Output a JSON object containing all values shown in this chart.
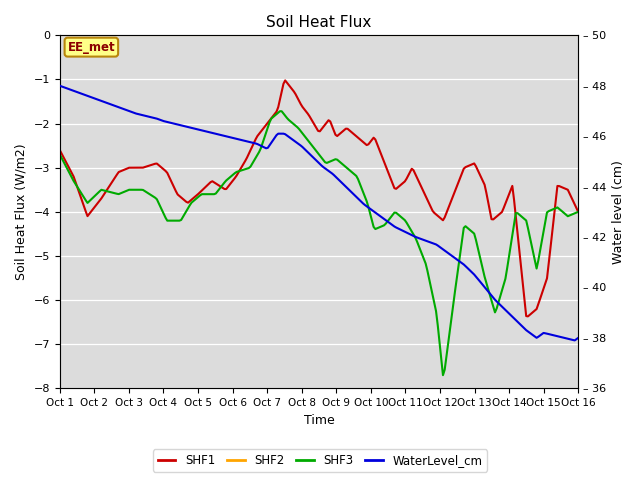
{
  "title": "Soil Heat Flux",
  "xlabel": "Time",
  "ylabel_left": "Soil Heat Flux (W/m2)",
  "ylabel_right": "Water level (cm)",
  "xlim": [
    0,
    15
  ],
  "ylim_left": [
    -8.0,
    0.0
  ],
  "ylim_right": [
    36,
    50
  ],
  "xtick_labels": [
    "Oct 1",
    "Oct 2",
    "Oct 3",
    "Oct 4",
    "Oct 5",
    "Oct 6",
    "Oct 7",
    "Oct 8",
    "Oct 9",
    "Oct 10",
    "Oct 11",
    "Oct 12",
    "Oct 13",
    "Oct 14",
    "Oct 15",
    "Oct 16"
  ],
  "yticks_left": [
    0.0,
    -1.0,
    -2.0,
    -3.0,
    -4.0,
    -5.0,
    -6.0,
    -7.0,
    -8.0
  ],
  "yticks_right": [
    50,
    48,
    46,
    44,
    42,
    40,
    38,
    36
  ],
  "background_color": "#dcdcdc",
  "SHF1_color": "#CC0000",
  "SHF2_color": "#FFA500",
  "SHF3_color": "#00AA00",
  "WaterLevel_color": "#0000DD",
  "shf1_kp_x": [
    0,
    0.4,
    0.8,
    1.2,
    1.7,
    2.0,
    2.4,
    2.8,
    3.1,
    3.4,
    3.7,
    4.0,
    4.4,
    4.8,
    5.1,
    5.4,
    5.7,
    6.0,
    6.3,
    6.5,
    6.8,
    7.0,
    7.2,
    7.5,
    7.8,
    8.0,
    8.3,
    8.6,
    8.9,
    9.1,
    9.4,
    9.7,
    10.0,
    10.2,
    10.5,
    10.8,
    11.1,
    11.4,
    11.7,
    12.0,
    12.3,
    12.5,
    12.8,
    13.1,
    13.5,
    13.8,
    14.1,
    14.4,
    14.7,
    15.0
  ],
  "shf1_kp_y": [
    -2.6,
    -3.2,
    -4.1,
    -3.7,
    -3.1,
    -3.0,
    -3.0,
    -2.9,
    -3.1,
    -3.6,
    -3.8,
    -3.6,
    -3.3,
    -3.5,
    -3.2,
    -2.8,
    -2.3,
    -2.0,
    -1.7,
    -1.0,
    -1.3,
    -1.6,
    -1.8,
    -2.2,
    -1.9,
    -2.3,
    -2.1,
    -2.3,
    -2.5,
    -2.3,
    -2.9,
    -3.5,
    -3.3,
    -3.0,
    -3.5,
    -4.0,
    -4.2,
    -3.6,
    -3.0,
    -2.9,
    -3.4,
    -4.2,
    -4.0,
    -3.4,
    -6.4,
    -6.2,
    -5.5,
    -3.4,
    -3.5,
    -4.0
  ],
  "shf3_kp_x": [
    0,
    0.4,
    0.8,
    1.2,
    1.7,
    2.0,
    2.4,
    2.8,
    3.1,
    3.5,
    3.8,
    4.1,
    4.5,
    4.8,
    5.1,
    5.5,
    5.8,
    6.1,
    6.4,
    6.6,
    6.9,
    7.1,
    7.4,
    7.7,
    8.0,
    8.3,
    8.6,
    8.9,
    9.1,
    9.4,
    9.7,
    10.0,
    10.3,
    10.6,
    10.9,
    11.1,
    11.4,
    11.7,
    12.0,
    12.3,
    12.6,
    12.9,
    13.2,
    13.5,
    13.8,
    14.1,
    14.4,
    14.7,
    15.0
  ],
  "shf3_kp_y": [
    -2.7,
    -3.3,
    -3.8,
    -3.5,
    -3.6,
    -3.5,
    -3.5,
    -3.7,
    -4.2,
    -4.2,
    -3.8,
    -3.6,
    -3.6,
    -3.3,
    -3.1,
    -3.0,
    -2.6,
    -1.9,
    -1.7,
    -1.9,
    -2.1,
    -2.3,
    -2.6,
    -2.9,
    -2.8,
    -3.0,
    -3.2,
    -3.8,
    -4.4,
    -4.3,
    -4.0,
    -4.2,
    -4.6,
    -5.2,
    -6.3,
    -7.8,
    -6.0,
    -4.3,
    -4.5,
    -5.5,
    -6.3,
    -5.5,
    -4.0,
    -4.2,
    -5.3,
    -4.0,
    -3.9,
    -4.1,
    -4.0
  ],
  "water_kp_x": [
    0,
    0.2,
    0.4,
    0.6,
    0.8,
    1.0,
    1.2,
    1.4,
    1.6,
    1.8,
    2.0,
    2.2,
    2.5,
    2.8,
    3.0,
    3.3,
    3.6,
    3.9,
    4.2,
    4.5,
    4.8,
    5.1,
    5.4,
    5.7,
    6.0,
    6.3,
    6.5,
    6.7,
    7.0,
    7.3,
    7.6,
    7.9,
    8.2,
    8.5,
    8.8,
    9.1,
    9.4,
    9.7,
    10.0,
    10.3,
    10.5,
    10.7,
    10.9,
    11.1,
    11.4,
    11.7,
    12.0,
    12.3,
    12.6,
    12.9,
    13.2,
    13.5,
    13.8,
    14.0,
    14.3,
    14.6,
    14.9,
    15.0
  ],
  "water_kp_y": [
    48.0,
    47.9,
    47.8,
    47.7,
    47.6,
    47.5,
    47.4,
    47.3,
    47.2,
    47.1,
    47.0,
    46.9,
    46.8,
    46.7,
    46.6,
    46.5,
    46.4,
    46.3,
    46.2,
    46.1,
    46.0,
    45.9,
    45.8,
    45.7,
    45.5,
    46.1,
    46.1,
    45.9,
    45.6,
    45.2,
    44.8,
    44.5,
    44.1,
    43.7,
    43.3,
    43.0,
    42.7,
    42.4,
    42.2,
    42.0,
    41.9,
    41.8,
    41.7,
    41.5,
    41.2,
    40.9,
    40.5,
    40.0,
    39.5,
    39.1,
    38.7,
    38.3,
    38.0,
    38.2,
    38.1,
    38.0,
    37.9,
    38.0
  ]
}
